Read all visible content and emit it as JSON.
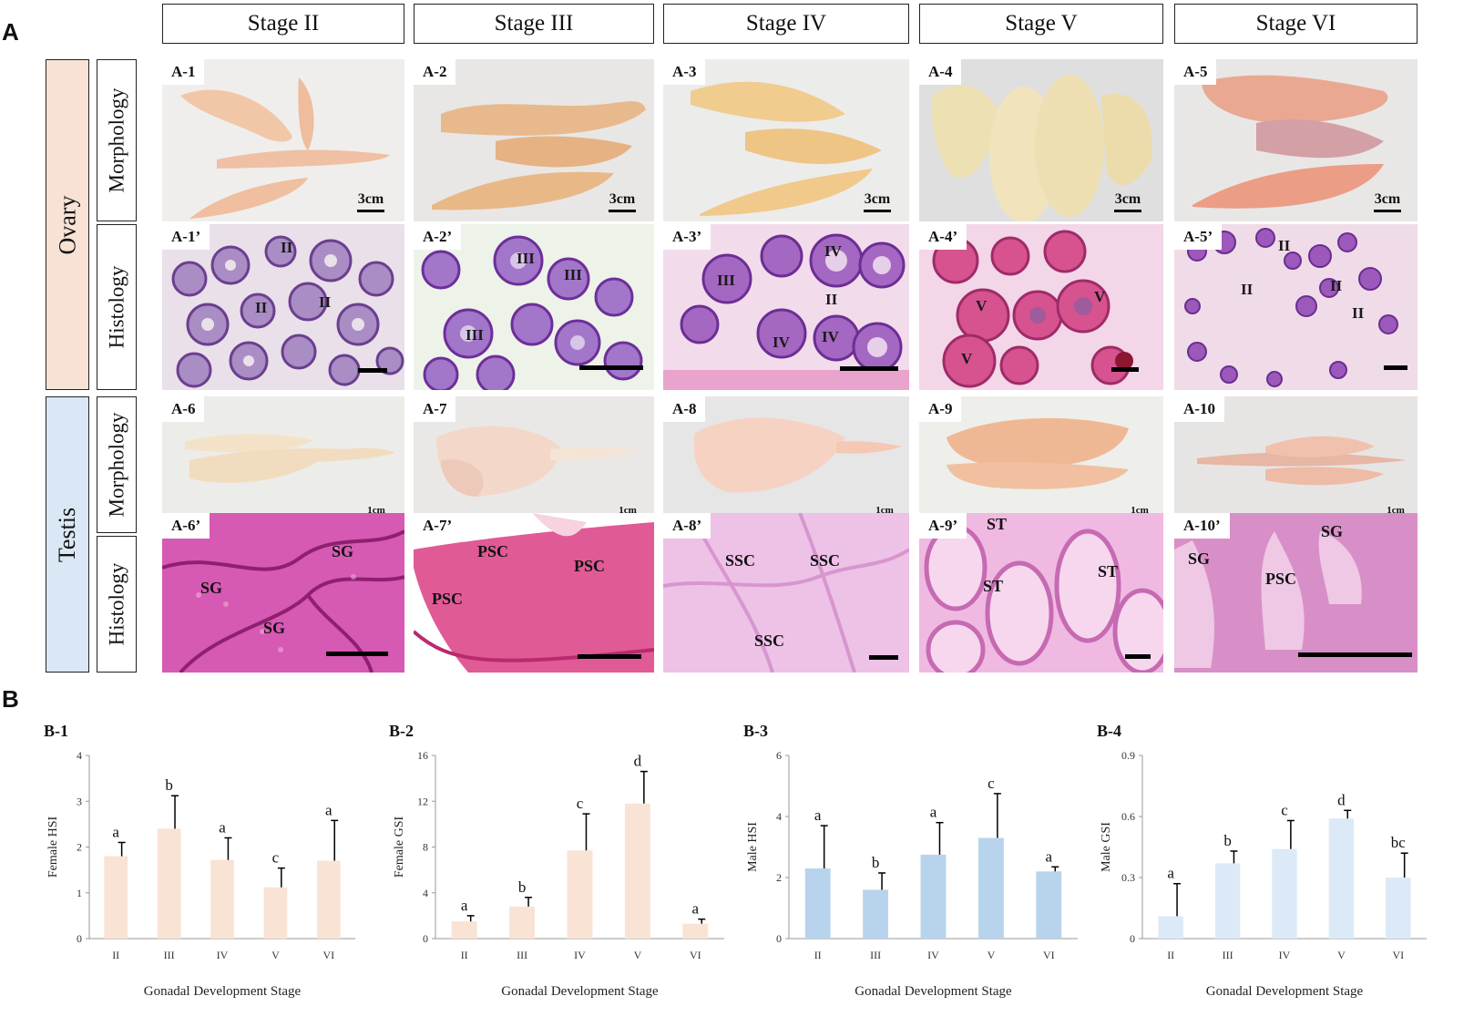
{
  "panel_labels": {
    "a": "A",
    "b": "B"
  },
  "stages": [
    "Stage II",
    "Stage III",
    "Stage IV",
    "Stage V",
    "Stage VI"
  ],
  "rows": {
    "ovary": "Ovary",
    "testis": "Testis",
    "morphology": "Morphology",
    "histology": "Histology"
  },
  "tiles": {
    "ovary_morph": [
      "A-1",
      "A-2",
      "A-3",
      "A-4",
      "A-5"
    ],
    "ovary_hist": [
      "A-1’",
      "A-2’",
      "A-3’",
      "A-4’",
      "A-5’"
    ],
    "testis_morph": [
      "A-6",
      "A-7",
      "A-8",
      "A-9",
      "A-10"
    ],
    "testis_hist": [
      "A-6’",
      "A-7’",
      "A-8’",
      "A-9’",
      "A-10’"
    ]
  },
  "scale_labels": {
    "ovary": "3cm",
    "testis": "1cm"
  },
  "cell_labels": {
    "ovary": [
      [
        "II",
        "II",
        "II"
      ],
      [
        "III",
        "III",
        "III"
      ],
      [
        "III",
        "IV",
        "II",
        "IV",
        "IV"
      ],
      [
        "V",
        "V",
        "V"
      ],
      [
        "II",
        "II",
        "II",
        "II"
      ]
    ],
    "testis": [
      [
        "SG",
        "SG",
        "SG"
      ],
      [
        "PSC",
        "PSC",
        "PSC"
      ],
      [
        "SSC",
        "SSC",
        "SSC"
      ],
      [
        "ST",
        "ST",
        "ST"
      ],
      [
        "SG",
        "SG",
        "PSC"
      ]
    ]
  },
  "colors": {
    "female_bar": "#f9e3d4",
    "male_hsi_bar": "#b8d4ec",
    "male_gsi_bar": "#dceaf7",
    "ovary_box": "#f8e2d6",
    "testis_box": "#d9e8f4"
  },
  "chart_data": [
    {
      "id": "B-1",
      "type": "bar",
      "categories": [
        "II",
        "III",
        "IV",
        "V",
        "VI"
      ],
      "values": [
        1.8,
        2.4,
        1.72,
        1.12,
        1.7
      ],
      "errors": [
        0.3,
        0.72,
        0.48,
        0.42,
        0.88
      ],
      "letters": [
        "a",
        "b",
        "a",
        "c",
        "a"
      ],
      "xlabel": "Gonadal Development Stage",
      "ylabel": "Female  HSI",
      "ylim": [
        0,
        4
      ],
      "yticks": [
        "0",
        "1",
        "2",
        "3",
        "4"
      ],
      "color": "#f9e3d4"
    },
    {
      "id": "B-2",
      "type": "bar",
      "categories": [
        "II",
        "III",
        "IV",
        "V",
        "VI"
      ],
      "values": [
        1.5,
        2.8,
        7.7,
        11.8,
        1.3
      ],
      "errors": [
        0.5,
        0.8,
        3.2,
        2.8,
        0.4
      ],
      "letters": [
        "a",
        "b",
        "c",
        "d",
        "a"
      ],
      "xlabel": "Gonadal Development Stage",
      "ylabel": "Female GSI",
      "ylim": [
        0,
        16
      ],
      "yticks": [
        "0",
        "4",
        "8",
        "12",
        "16"
      ],
      "color": "#f9e3d4"
    },
    {
      "id": "B-3",
      "type": "bar",
      "categories": [
        "II",
        "III",
        "IV",
        "V",
        "VI"
      ],
      "values": [
        2.3,
        1.6,
        2.75,
        3.3,
        2.2
      ],
      "errors": [
        1.4,
        0.55,
        1.05,
        1.45,
        0.15
      ],
      "letters": [
        "a",
        "b",
        "a",
        "c",
        "a"
      ],
      "xlabel": "Gonadal Development Stage",
      "ylabel": "Male  HSI",
      "ylim": [
        0,
        6
      ],
      "yticks": [
        "0",
        "2",
        "4",
        "6"
      ],
      "color": "#b8d4ec"
    },
    {
      "id": "B-4",
      "type": "bar",
      "categories": [
        "II",
        "III",
        "IV",
        "V",
        "VI"
      ],
      "values": [
        0.11,
        0.37,
        0.44,
        0.59,
        0.3
      ],
      "errors": [
        0.16,
        0.06,
        0.14,
        0.04,
        0.12
      ],
      "letters": [
        "a",
        "b",
        "c",
        "d",
        "bc"
      ],
      "xlabel": "Gonadal Development Stage",
      "ylabel": "Male GSI",
      "ylim": [
        0,
        0.9
      ],
      "yticks": [
        "0",
        "0.3",
        "0.6",
        "0.9"
      ],
      "color": "#dceaf7"
    }
  ]
}
